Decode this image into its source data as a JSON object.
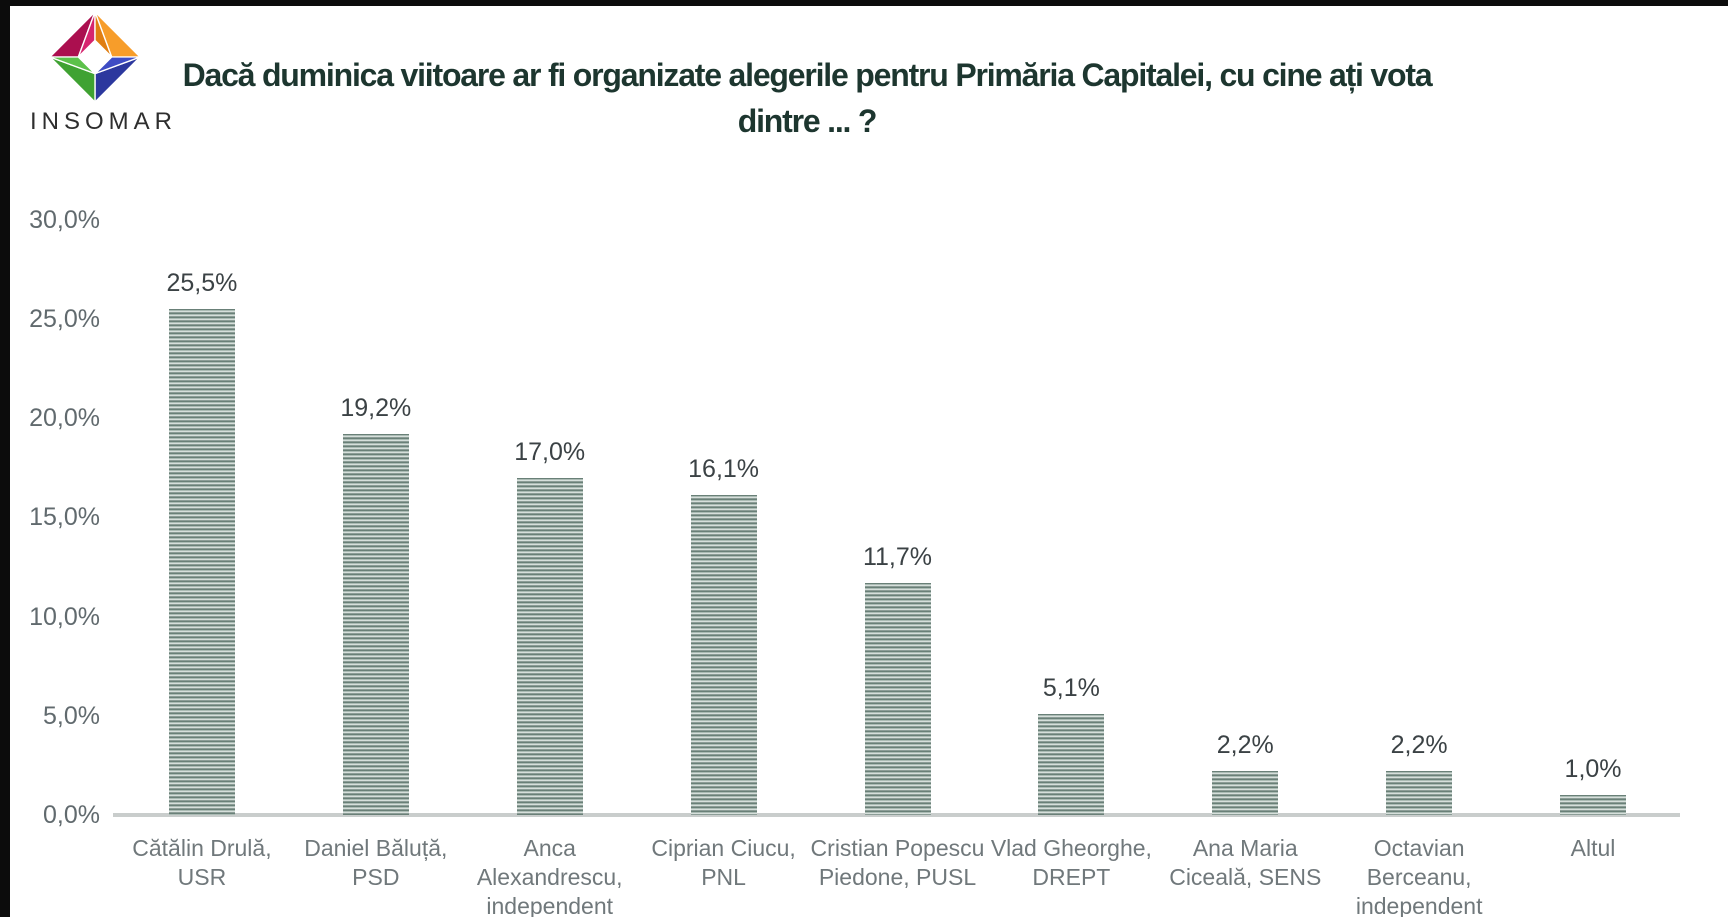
{
  "brand": {
    "logo_text": "INSOMAR",
    "logo_colors": {
      "magenta": "#c2155c",
      "orange": "#f79421",
      "blue": "#2d3aa5",
      "green": "#46ad3a"
    }
  },
  "title": {
    "text": "Dacă duminica viitoare ar fi organizate alegerile pentru Primăria Capitalei, cu cine ați vota dintre ... ?",
    "lines": [
      "Dacă duminica viitoare ar fi organizate alegerile pentru Primăria Capitalei, cu cine ați vota",
      "dintre ... ?"
    ],
    "color": "#1d362f"
  },
  "chart_data": {
    "type": "bar",
    "title": "Dacă duminica viitoare ar fi organizate alegerile pentru Primăria Capitalei, cu cine ați vota dintre ... ?",
    "xlabel": "",
    "ylabel": "",
    "ylim": [
      0,
      30
    ],
    "grid": false,
    "legend": null,
    "bar_style": "horizontal-striped-green-gray",
    "bar_color_dark": "#4c635b",
    "bar_color_light": "#e2e8e5",
    "yticks": [
      {
        "label": "30,0%",
        "value": 30
      },
      {
        "label": "25,0%",
        "value": 25
      },
      {
        "label": "20,0%",
        "value": 20
      },
      {
        "label": "15,0%",
        "value": 15
      },
      {
        "label": "10,0%",
        "value": 10
      },
      {
        "label": "5,0%",
        "value": 5
      },
      {
        "label": "0,0%",
        "value": 0
      }
    ],
    "categories": [
      {
        "name": "Cătălin Drulă, USR",
        "lines": [
          "Cătălin Drulă,",
          "USR"
        ]
      },
      {
        "name": "Daniel Băluță, PSD",
        "lines": [
          "Daniel Băluță,",
          "PSD"
        ]
      },
      {
        "name": "Anca Alexandrescu, independent",
        "lines": [
          "Anca",
          "Alexandrescu,",
          "independent"
        ]
      },
      {
        "name": "Ciprian Ciucu, PNL",
        "lines": [
          "Ciprian Ciucu,",
          "PNL"
        ]
      },
      {
        "name": "Cristian Popescu Piedone, PUSL",
        "lines": [
          "Cristian Popescu",
          "Piedone, PUSL"
        ]
      },
      {
        "name": "Vlad Gheorghe, DREPT",
        "lines": [
          "Vlad Gheorghe,",
          "DREPT"
        ]
      },
      {
        "name": "Ana Maria Ciceală, SENS",
        "lines": [
          "Ana Maria",
          "Ciceală, SENS"
        ]
      },
      {
        "name": "Octavian Berceanu, independent",
        "lines": [
          "Octavian",
          "Berceanu,",
          "independent"
        ]
      },
      {
        "name": "Altul",
        "lines": [
          "Altul"
        ]
      }
    ],
    "values": [
      25.5,
      19.2,
      17.0,
      16.1,
      11.7,
      5.1,
      2.2,
      2.2,
      1.0
    ],
    "value_labels": [
      "25,5%",
      "19,2%",
      "17,0%",
      "16,1%",
      "11,7%",
      "5,1%",
      "2,2%",
      "2,2%",
      "1,0%"
    ]
  }
}
